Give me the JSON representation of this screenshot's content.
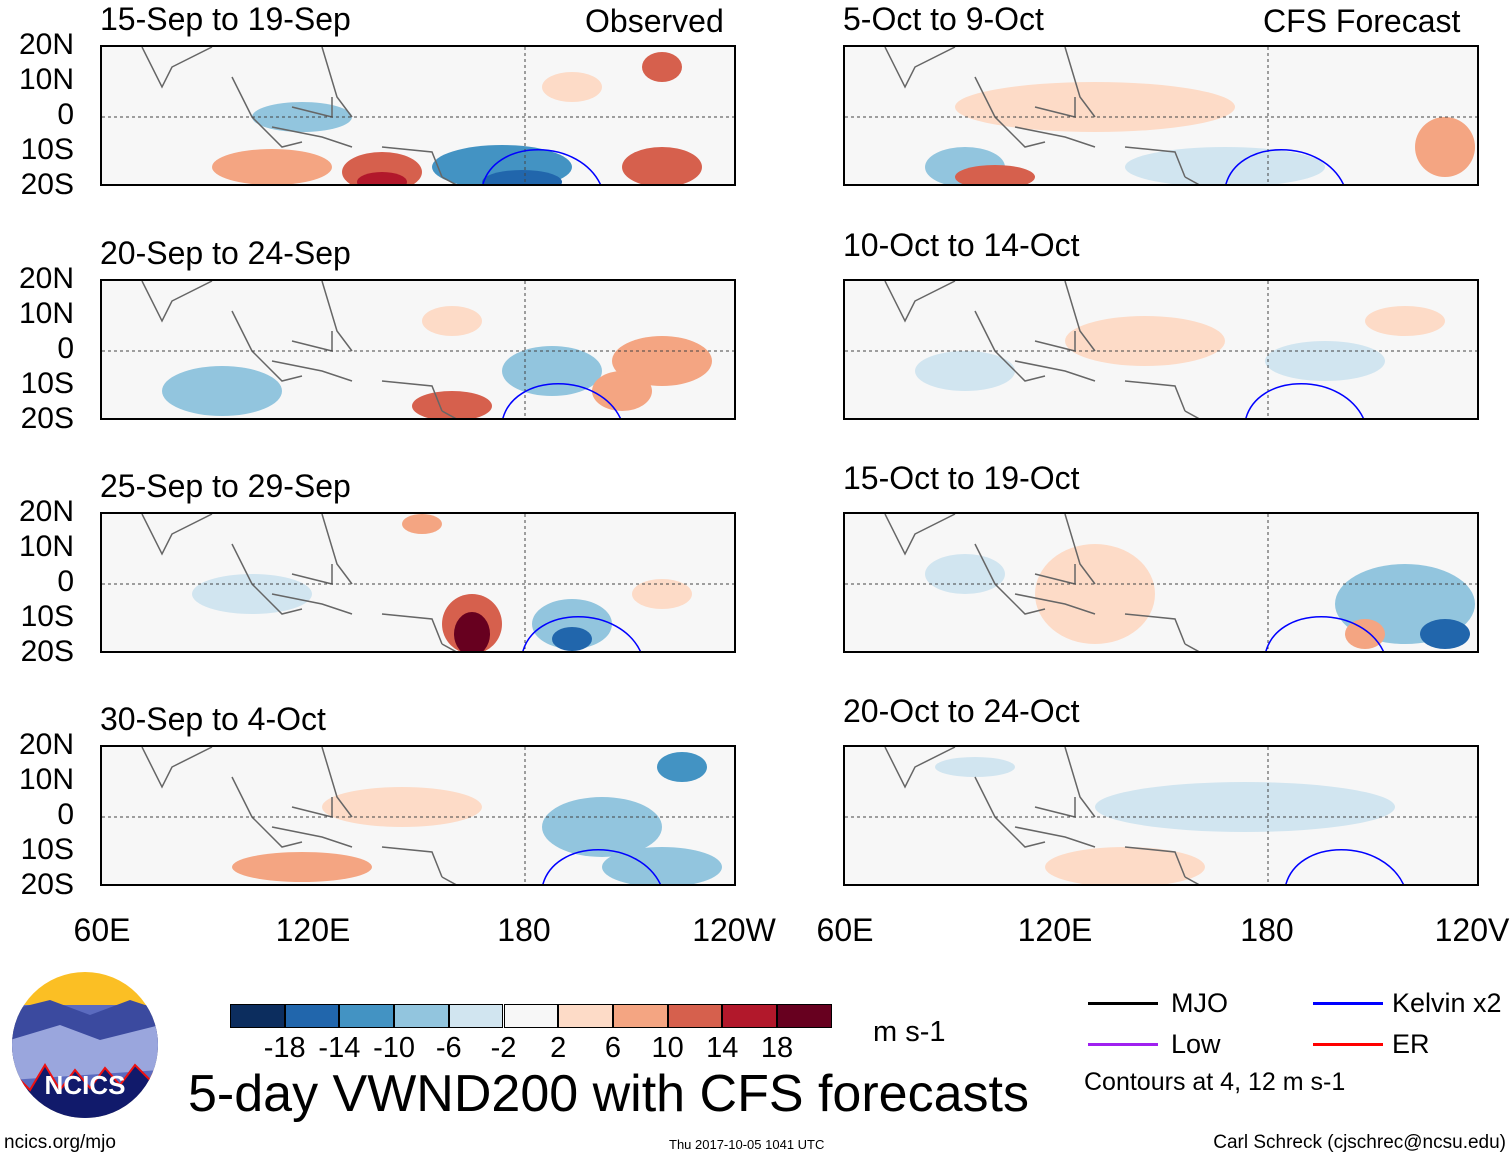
{
  "panels_left": [
    {
      "label": "15-Sep to 19-Sep",
      "tag": "Observed"
    },
    {
      "label": "20-Sep to 24-Sep"
    },
    {
      "label": "25-Sep to 29-Sep"
    },
    {
      "label": "30-Sep to 4-Oct"
    }
  ],
  "panels_right": [
    {
      "label": "5-Oct to 9-Oct",
      "tag": "CFS Forecast"
    },
    {
      "label": "10-Oct to 14-Oct"
    },
    {
      "label": "15-Oct to 19-Oct"
    },
    {
      "label": "20-Oct to 24-Oct"
    }
  ],
  "lat_labels": [
    "20N",
    "10N",
    "0",
    "10S",
    "20S"
  ],
  "lon_labels_left": [
    "60E",
    "120E",
    "180",
    "120W"
  ],
  "lon_labels_right": [
    "60E",
    "120E",
    "180",
    "120V"
  ],
  "colorbar": {
    "colors": [
      "#0c2d5e",
      "#2166ac",
      "#4393c3",
      "#92c5de",
      "#d1e5f0",
      "#f7f7f7",
      "#fddbc7",
      "#f4a582",
      "#d6604d",
      "#b2182b",
      "#67001f"
    ],
    "ticks": [
      "-18",
      "-14",
      "-10",
      "-6",
      "-2",
      "2",
      "6",
      "10",
      "14",
      "18"
    ],
    "units": "m s-1"
  },
  "legend": {
    "items": [
      {
        "label": "MJO",
        "color": "#000000"
      },
      {
        "label": "Kelvin x2",
        "color": "#0000ff"
      },
      {
        "label": "Low",
        "color": "#a020f0"
      },
      {
        "label": "ER",
        "color": "#ff0000"
      }
    ],
    "note": "Contours at 4, 12 m s-1"
  },
  "title": "5-day VWND200 with CFS forecasts",
  "logo_text": "NCICS",
  "footer": {
    "left": "ncics.org/mjo",
    "center": "Thu 2017-10-05 1041 UTC",
    "right": "Carl Schreck (cjschrec@ncsu.edu)"
  }
}
